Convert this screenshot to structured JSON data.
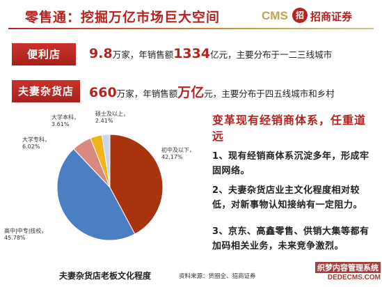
{
  "header": {
    "title": "零售通：挖掘万亿市场巨大空间",
    "logo_text": "CMS",
    "logo_mark": "招",
    "logo_cn": "招商证券"
  },
  "convenience_store": {
    "tag": "便利店",
    "count_value": "9.8",
    "count_unit": "万",
    "count_suffix": "家，年销售额",
    "sales_value": "1334",
    "sales_unit": "亿",
    "sales_suffix": "元，主要分布于一二三线城市"
  },
  "mom_pop_store": {
    "tag": "夫妻杂货店",
    "count_value": "660",
    "count_unit": "万",
    "count_suffix": "家，年销售额",
    "sales_value": "万亿",
    "sales_suffix": "元，主要分布于四五线城市和乡村"
  },
  "chart_data": {
    "type": "pie",
    "title": "夫妻杂货店老板文化程度",
    "slices": [
      {
        "label": "初中及以下",
        "value": 42.17,
        "display": "42.17%",
        "color": "#a8330f"
      },
      {
        "label": "高中|中专|技校",
        "value": 45.78,
        "display": "45.78%",
        "color": "#4a7fc4"
      },
      {
        "label": "大学专科",
        "value": 6.02,
        "display": "6.02%",
        "color": "#d98a80"
      },
      {
        "label": "大学本科",
        "value": 3.61,
        "display": "3.61%",
        "color": "#f2b41c"
      },
      {
        "label": "硕士及以上",
        "value": 2.41,
        "display": "2.41%",
        "color": "#c7d6ec"
      }
    ]
  },
  "caption": "夫妻杂货店老板文化程度",
  "source": "资料来源：货圈全、招商证券",
  "right": {
    "heading": "变革现有经销商体系，任重道远",
    "points": [
      "1、现有经销商体系沉淀多年，形成牢固网络。",
      "2、夫妻杂货店业主文化程度相对较低，对新事物认知接纳有一定阻力。",
      "3、京东、高鑫零售、供销大集等都有加码相关业务，未来竞争激烈。"
    ]
  },
  "watermark": {
    "top": "织梦内容管理系统",
    "bottom": "DEDECMS.COM"
  }
}
